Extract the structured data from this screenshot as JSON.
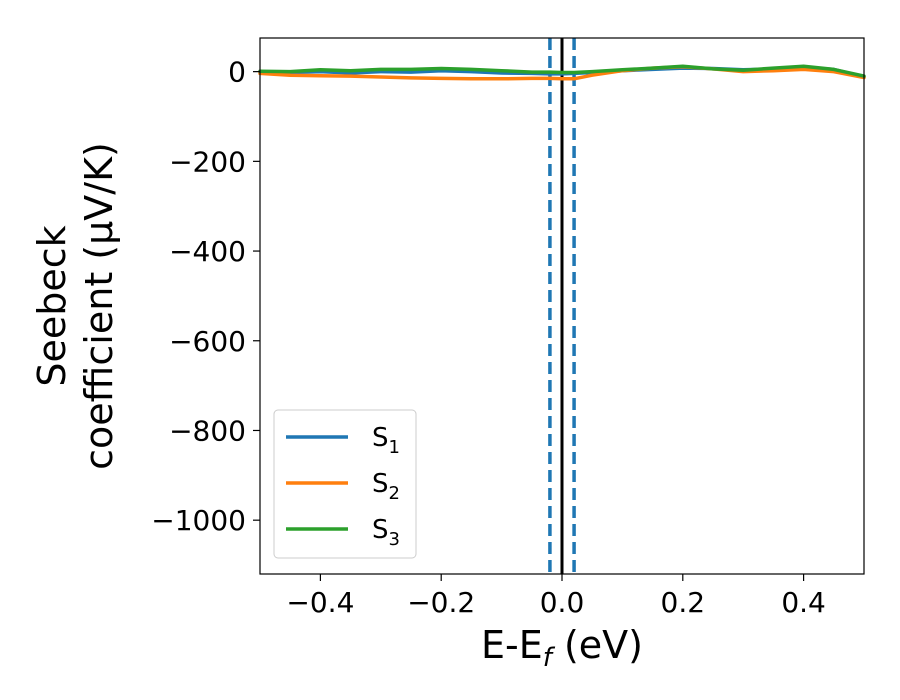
{
  "chart_data": {
    "type": "line",
    "xlabel_main": "E-E",
    "xlabel_sub": "f",
    "xlabel_tail": " (eV)",
    "ylabel_line1": "Seebeck",
    "ylabel_line2": "coefficient  (μV/K)",
    "xlim": [
      -0.5,
      0.5
    ],
    "ylim": [
      -1120,
      75
    ],
    "xticks": [
      -0.4,
      -0.2,
      0.0,
      0.2,
      0.4
    ],
    "xtick_labels": [
      "−0.4",
      "−0.2",
      "0.0",
      "0.2",
      "0.4"
    ],
    "yticks": [
      0,
      -200,
      -400,
      -600,
      -800,
      -1000
    ],
    "ytick_labels": [
      "0",
      "−200",
      "−400",
      "−600",
      "−800",
      "−1000"
    ],
    "grid": false,
    "legend_position": "lower-left",
    "vlines": [
      {
        "x": 0.0,
        "color": "#000000",
        "style": "solid"
      },
      {
        "x": -0.02,
        "color": "#1f77b4",
        "style": "dashed"
      },
      {
        "x": 0.02,
        "color": "#1f77b4",
        "style": "dashed"
      }
    ],
    "x": [
      -0.5,
      -0.45,
      -0.4,
      -0.35,
      -0.3,
      -0.25,
      -0.2,
      -0.15,
      -0.1,
      -0.05,
      -0.02,
      0.0,
      0.02,
      0.05,
      0.1,
      0.15,
      0.2,
      0.25,
      0.3,
      0.35,
      0.4,
      0.45,
      0.5
    ],
    "series": [
      {
        "name_main": "S",
        "name_sub": "1",
        "color": "#1f77b4",
        "values": [
          -2,
          -2,
          0,
          -3,
          0,
          -1,
          2,
          0,
          -3,
          -4,
          -5,
          -5,
          -4,
          -2,
          2,
          5,
          8,
          7,
          4,
          6,
          9,
          5,
          -12
        ]
      },
      {
        "name_main": "S",
        "name_sub": "2",
        "color": "#ff7f0e",
        "values": [
          -4,
          -8,
          -9,
          -10,
          -12,
          -14,
          -15,
          -16,
          -16,
          -15,
          -15,
          -16,
          -16,
          -8,
          2,
          8,
          11,
          6,
          0,
          2,
          5,
          0,
          -13
        ]
      },
      {
        "name_main": "S",
        "name_sub": "3",
        "color": "#2ca02c",
        "values": [
          1,
          0,
          4,
          2,
          5,
          5,
          7,
          5,
          2,
          -1,
          -1,
          -2,
          -2,
          0,
          4,
          8,
          12,
          6,
          3,
          8,
          12,
          5,
          -10
        ]
      }
    ]
  }
}
